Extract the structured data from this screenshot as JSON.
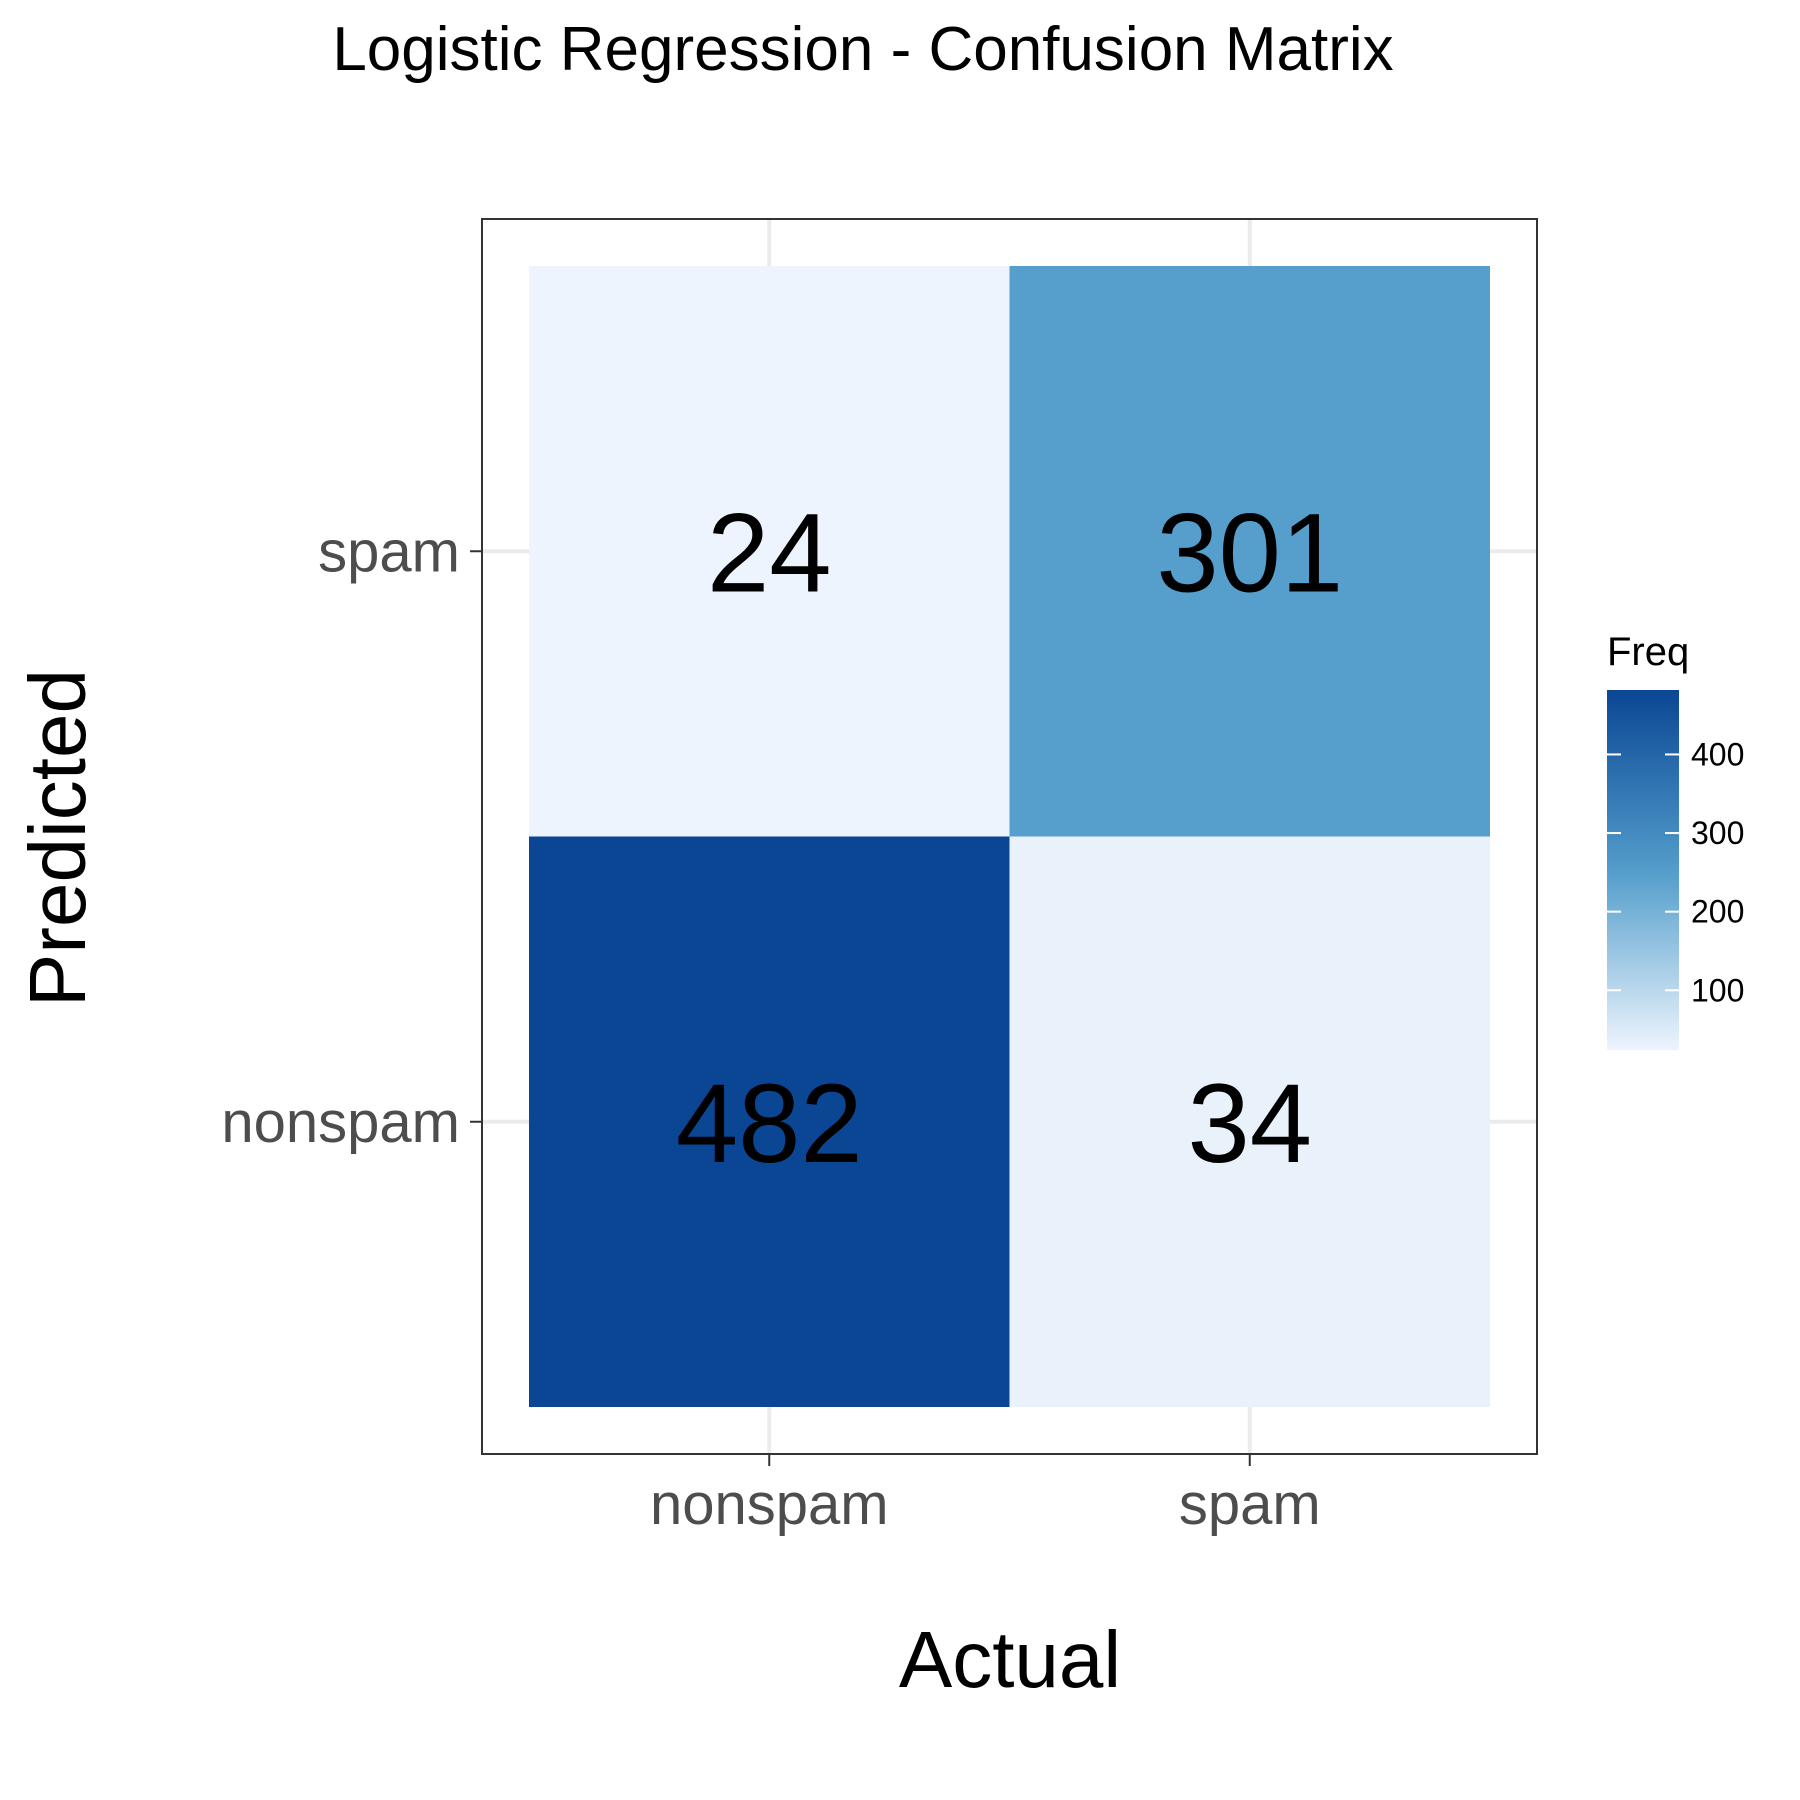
{
  "chart_data": {
    "type": "heatmap",
    "title": "Logistic Regression - Confusion Matrix",
    "xlabel": "Actual",
    "ylabel": "Predicted",
    "x_categories": [
      "nonspam",
      "spam"
    ],
    "y_categories": [
      "nonspam",
      "spam"
    ],
    "cells": [
      {
        "actual": "nonspam",
        "predicted": "spam",
        "value": 24
      },
      {
        "actual": "spam",
        "predicted": "spam",
        "value": 301
      },
      {
        "actual": "nonspam",
        "predicted": "nonspam",
        "value": 482
      },
      {
        "actual": "spam",
        "predicted": "nonspam",
        "value": 34
      }
    ],
    "legend": {
      "title": "Freq",
      "position": "right",
      "ticks": [
        100,
        200,
        300,
        400
      ],
      "range": [
        24,
        482
      ]
    },
    "colors": {
      "low": "#eef4fd",
      "mid": "#529dcb",
      "high": "#0a4694",
      "panel_border": "#333333",
      "grid": "#ebebeb"
    },
    "grid": true
  }
}
